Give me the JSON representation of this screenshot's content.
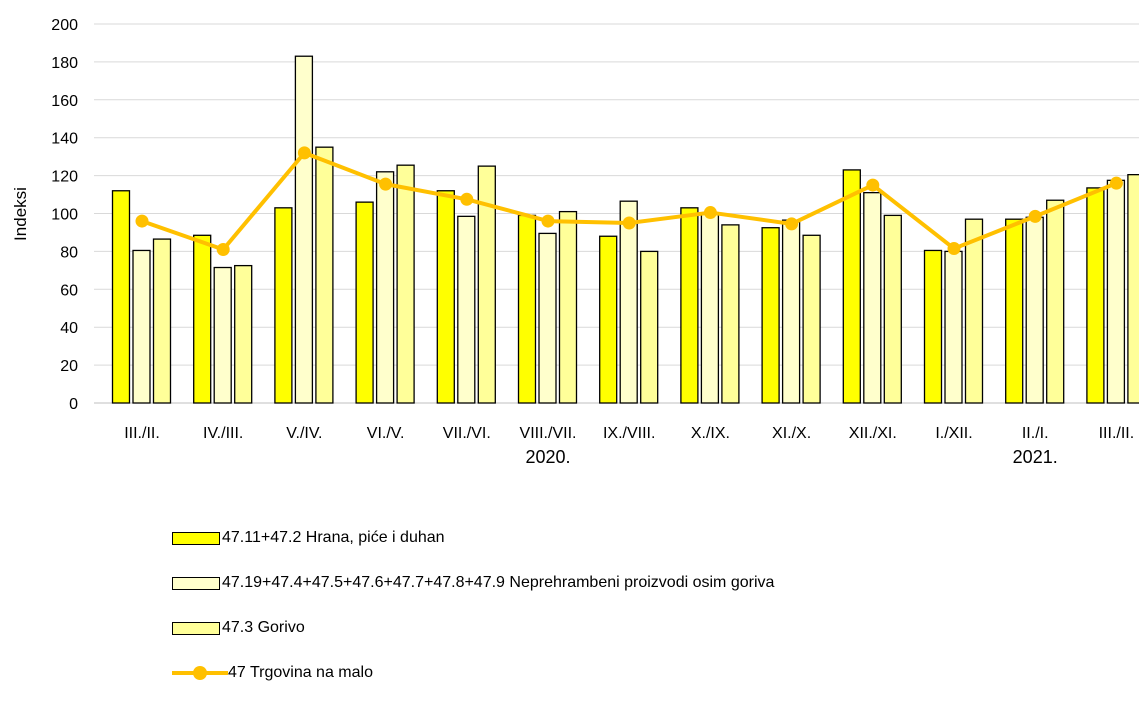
{
  "chart_data": {
    "type": "bar",
    "ylabel": "Indeksi",
    "ylim": [
      0,
      200
    ],
    "yticks": [
      "0",
      "20",
      "40",
      "60",
      "80",
      "100",
      "120",
      "140",
      "160",
      "180",
      "200"
    ],
    "grid": "horizontal",
    "categories": [
      "III./II.",
      "IV./III.",
      "V./IV.",
      "VI./V.",
      "VII./VI.",
      "VIII./VII.",
      "IX./VIII.",
      "X./IX.",
      "XI./X.",
      "XII./XI.",
      "I./XII.",
      "II./I.",
      "III./II."
    ],
    "year_labels": [
      {
        "text": "2020.",
        "category_index": 5
      },
      {
        "text": "2021.",
        "category_index": 11
      }
    ],
    "series": [
      {
        "name": "47.11+47.2 Hrana, piće i duhan",
        "kind": "bar",
        "color": "#FFFF00",
        "values": [
          112,
          88.5,
          103,
          106,
          112,
          99,
          88,
          103,
          92.5,
          123,
          80.5,
          97,
          113.5
        ]
      },
      {
        "name": "47.19+47.4+47.5+47.6+47.7+47.8+47.9 Neprehrambeni proizvodi osim goriva",
        "kind": "bar",
        "color": "#FFFFCC",
        "values": [
          80.5,
          71.5,
          183,
          122,
          98.5,
          89.5,
          106.5,
          100,
          96.5,
          111,
          80,
          98,
          117.5
        ]
      },
      {
        "name": "47.3 Gorivo",
        "kind": "bar",
        "color": "#FFFF99",
        "values": [
          86.5,
          72.5,
          135,
          125.5,
          125,
          101,
          80,
          94,
          88.5,
          99,
          97,
          107,
          120.5
        ]
      },
      {
        "name": "47 Trgovina na malo",
        "kind": "line",
        "color": "#FFC000",
        "values": [
          96,
          81,
          132,
          115.5,
          107.5,
          96,
          95,
          100.5,
          94.5,
          115,
          81.5,
          98.5,
          116
        ]
      }
    ],
    "legend_position": "bottom"
  }
}
